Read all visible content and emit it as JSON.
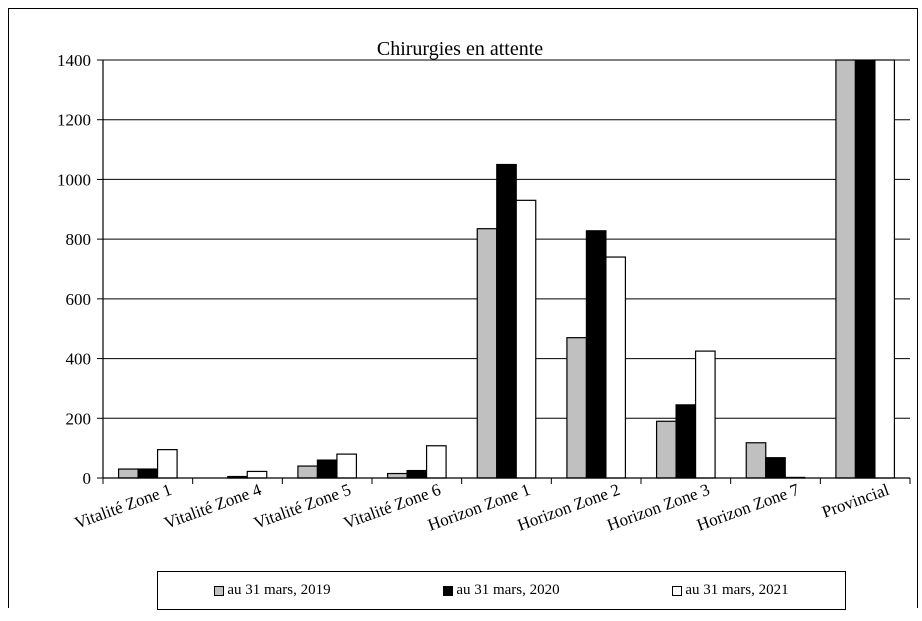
{
  "chart_data": {
    "type": "bar",
    "title": "Chirurgies en attente",
    "xlabel": "",
    "ylabel": "",
    "ylim": [
      0,
      1400
    ],
    "yticks": [
      0,
      200,
      400,
      600,
      800,
      1000,
      1200,
      1400
    ],
    "grid": true,
    "legend_position": "bottom",
    "categories": [
      "Vitalité Zone 1",
      "Vitalité Zone 4",
      "Vitalité Zone 5",
      "Vitalité Zone 6",
      "Horizon Zone 1",
      "Horizon Zone 2",
      "Horizon Zone 3",
      "Horizon Zone 7",
      "Provincial"
    ],
    "series": [
      {
        "name": "au 31 mars, 2019",
        "color": "#c0c0c0",
        "values": [
          30,
          0,
          40,
          15,
          835,
          470,
          190,
          118,
          1400
        ]
      },
      {
        "name": "au 31 mars, 2020",
        "color": "#000000",
        "values": [
          30,
          5,
          60,
          25,
          1050,
          828,
          245,
          68,
          1400
        ]
      },
      {
        "name": "au 31 mars, 2021",
        "color": "#ffffff",
        "values": [
          95,
          22,
          80,
          108,
          930,
          740,
          425,
          2,
          1400
        ]
      }
    ]
  }
}
